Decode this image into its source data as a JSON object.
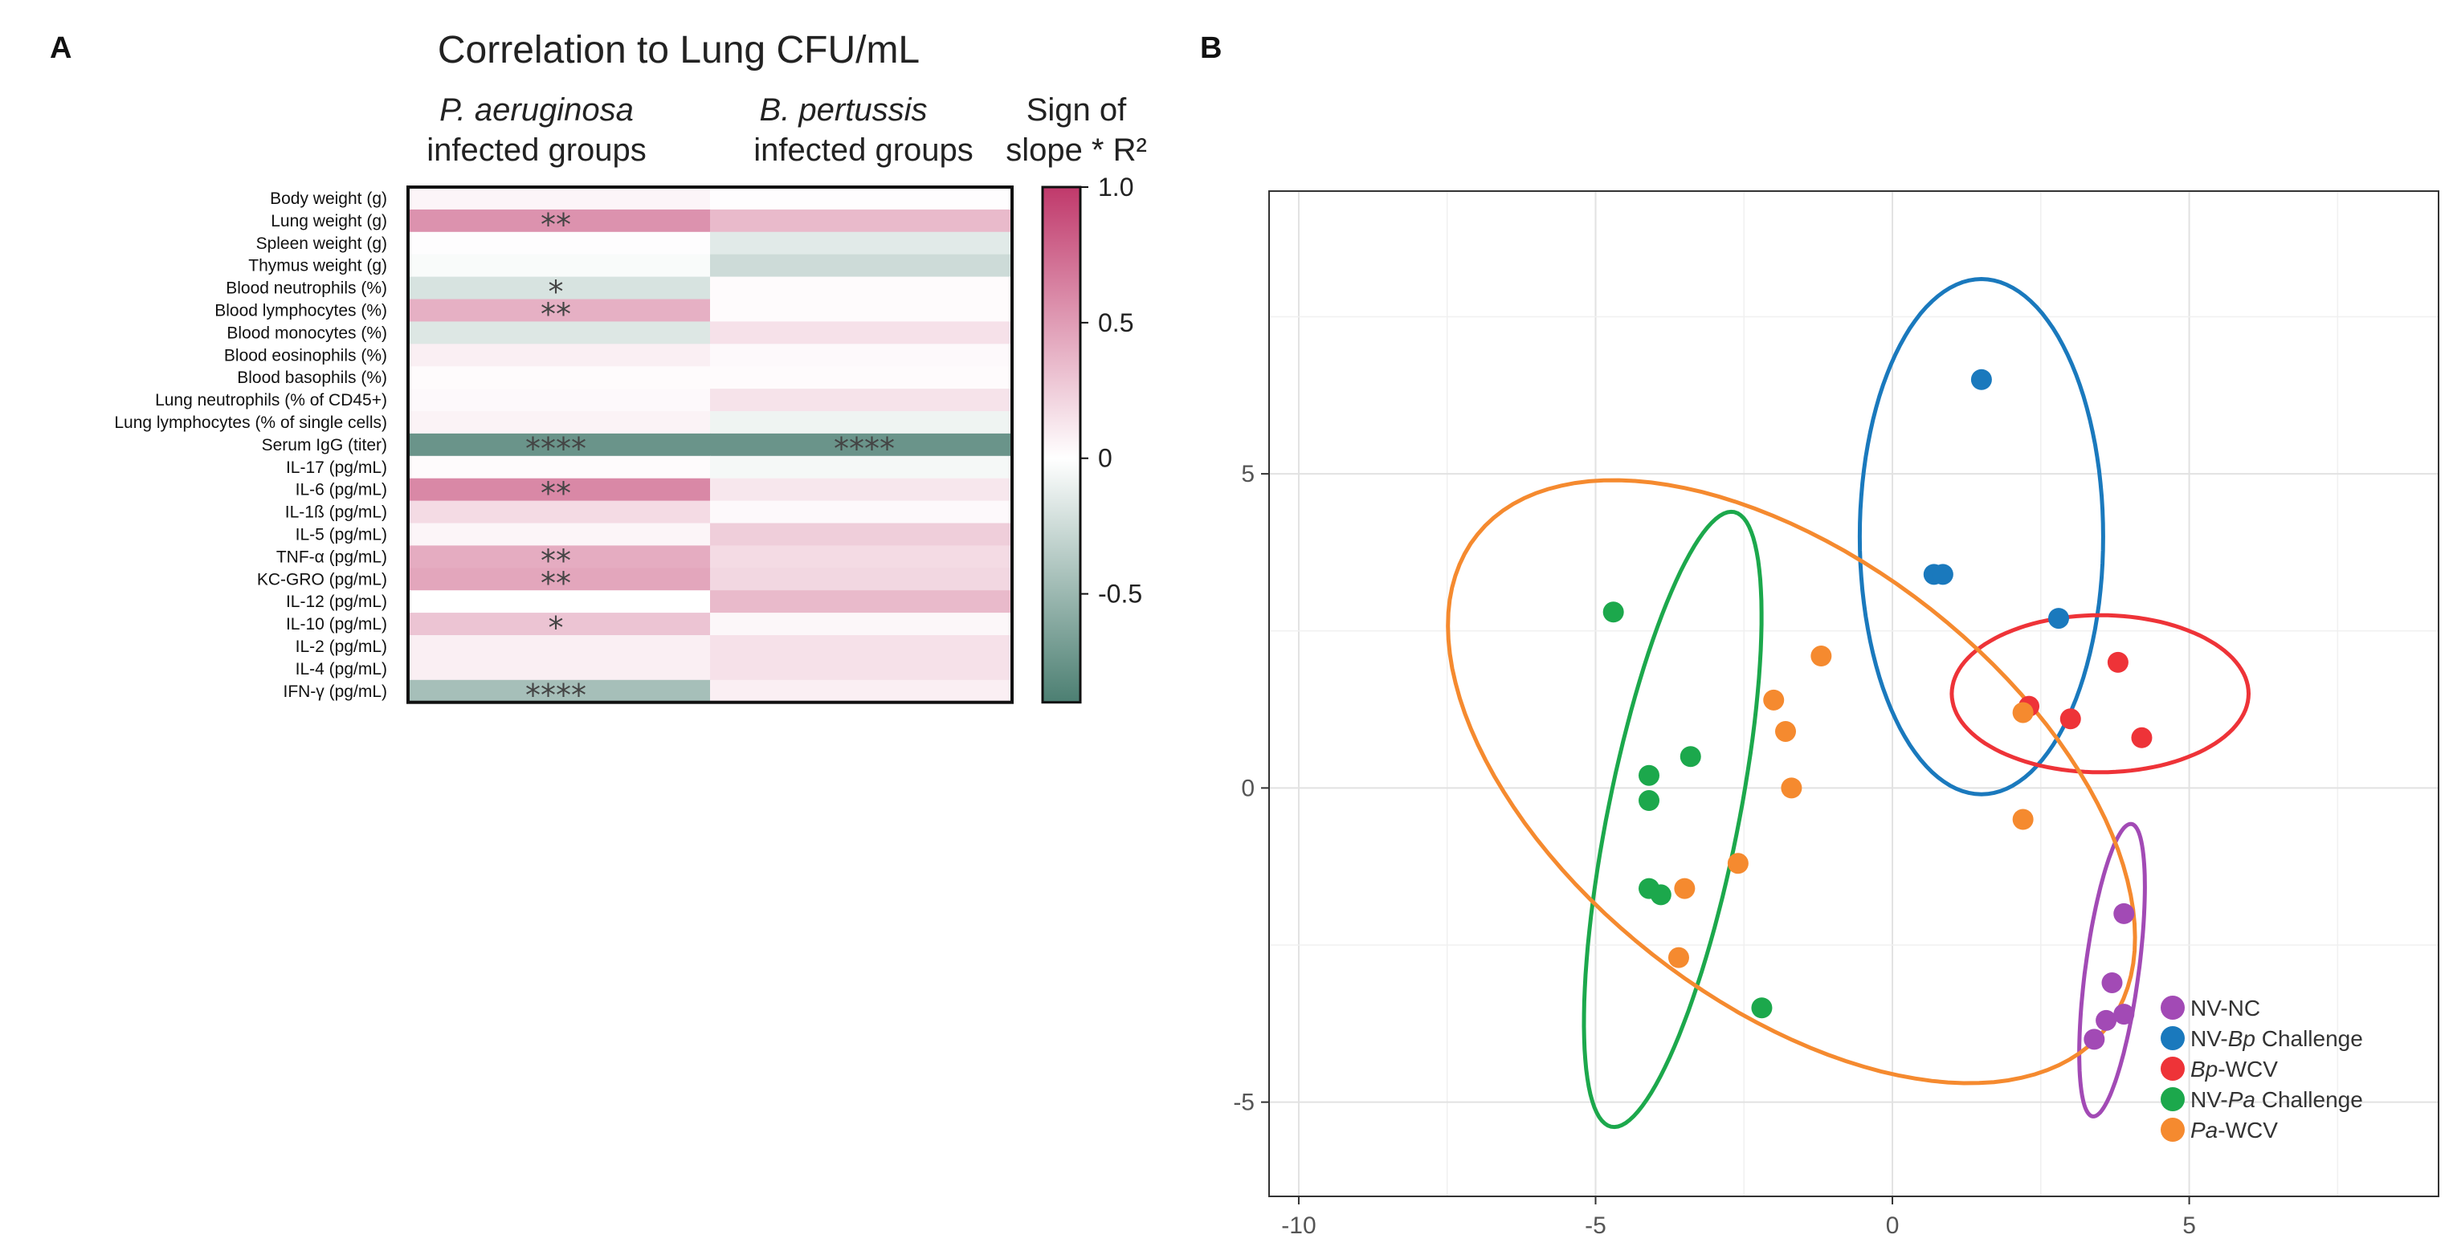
{
  "panel_a_letter": "A",
  "panel_b_letter": "B",
  "chart_data": [
    {
      "type": "heatmap",
      "title": "Correlation to Lung CFU/mL",
      "columns": [
        {
          "italic": "P. aeruginosa",
          "rest": "infected groups"
        },
        {
          "italic": "B. pertussis",
          "rest": "infected groups"
        }
      ],
      "colorbar": {
        "label_line1": "Sign of",
        "label_line2": "slope * R²",
        "range": [
          -0.9,
          1.0
        ],
        "ticks": [
          "1.0",
          "0.5",
          "0",
          "-0.5"
        ],
        "tick_values": [
          1.0,
          0.5,
          0.0,
          -0.5
        ]
      },
      "colors": {
        "high": "#c0396b",
        "mid": "#ffffff",
        "low": "#4c7f72"
      },
      "rows": [
        {
          "label": "Body weight (g)",
          "values": [
            0.05,
            0.01
          ],
          "stars": [
            "",
            ""
          ]
        },
        {
          "label": "Lung weight (g)",
          "values": [
            0.55,
            0.35
          ],
          "stars": [
            "**",
            ""
          ]
        },
        {
          "label": "Spleen weight (g)",
          "values": [
            0.01,
            -0.15
          ],
          "stars": [
            "",
            ""
          ]
        },
        {
          "label": "Thymus weight (g)",
          "values": [
            -0.03,
            -0.25
          ],
          "stars": [
            "",
            ""
          ]
        },
        {
          "label": "Blood neutrophils (%)",
          "values": [
            -0.2,
            0.02
          ],
          "stars": [
            "*",
            ""
          ]
        },
        {
          "label": "Blood lymphocytes (%)",
          "values": [
            0.4,
            0.02
          ],
          "stars": [
            "**",
            ""
          ]
        },
        {
          "label": "Blood monocytes (%)",
          "values": [
            -0.17,
            0.15
          ],
          "stars": [
            "",
            ""
          ]
        },
        {
          "label": "Blood eosinophils (%)",
          "values": [
            0.08,
            0.03
          ],
          "stars": [
            "",
            ""
          ]
        },
        {
          "label": "Blood basophils (%)",
          "values": [
            0.02,
            0.02
          ],
          "stars": [
            "",
            ""
          ]
        },
        {
          "label": "Lung neutrophils (% of CD45+)",
          "values": [
            0.03,
            0.14
          ],
          "stars": [
            "",
            ""
          ]
        },
        {
          "label": "Lung lymphocytes (% of single cells)",
          "values": [
            0.06,
            -0.08
          ],
          "stars": [
            "",
            ""
          ]
        },
        {
          "label": "Serum IgG (titer)",
          "values": [
            -0.75,
            -0.75
          ],
          "stars": [
            "****",
            "****"
          ]
        },
        {
          "label": "IL-17 (pg/mL)",
          "values": [
            0.02,
            -0.05
          ],
          "stars": [
            "",
            ""
          ]
        },
        {
          "label": "IL-6 (pg/mL)",
          "values": [
            0.6,
            0.12
          ],
          "stars": [
            "**",
            ""
          ]
        },
        {
          "label": "IL-1ß (pg/mL)",
          "values": [
            0.18,
            0.03
          ],
          "stars": [
            "",
            ""
          ]
        },
        {
          "label": "IL-5 (pg/mL)",
          "values": [
            0.05,
            0.25
          ],
          "stars": [
            "",
            ""
          ]
        },
        {
          "label": "TNF-α (pg/mL)",
          "values": [
            0.42,
            0.18
          ],
          "stars": [
            "**",
            ""
          ]
        },
        {
          "label": "KC-GRO (pg/mL)",
          "values": [
            0.45,
            0.2
          ],
          "stars": [
            "**",
            ""
          ]
        },
        {
          "label": "IL-12 (pg/mL)",
          "values": [
            0.0,
            0.35
          ],
          "stars": [
            "",
            ""
          ]
        },
        {
          "label": "IL-10 (pg/mL)",
          "values": [
            0.3,
            0.04
          ],
          "stars": [
            "*",
            ""
          ]
        },
        {
          "label": "IL-2 (pg/mL)",
          "values": [
            0.08,
            0.15
          ],
          "stars": [
            "",
            ""
          ]
        },
        {
          "label": "IL-4 (pg/mL)",
          "values": [
            0.08,
            0.15
          ],
          "stars": [
            "",
            ""
          ]
        },
        {
          "label": "IFN-γ (pg/mL)",
          "values": [
            -0.45,
            0.08
          ],
          "stars": [
            "****",
            ""
          ]
        }
      ]
    },
    {
      "type": "scatter",
      "xlim": [
        -10.5,
        9.2
      ],
      "ylim": [
        -6.5,
        9.5
      ],
      "x_ticks": [
        -10,
        -5,
        0,
        5
      ],
      "x_tick_labels": [
        "-10",
        "-5",
        "0",
        "5"
      ],
      "y_ticks": [
        5,
        0,
        -5
      ],
      "y_tick_labels": [
        "5",
        "0",
        "-5"
      ],
      "grid": true,
      "legend_position": "bottom-right",
      "series": [
        {
          "name_pre": "NV-NC",
          "name_italic": "",
          "name_post": "",
          "color": "#a24ab5",
          "points": [
            [
              3.9,
              -2.0
            ],
            [
              3.7,
              -3.1
            ],
            [
              3.9,
              -3.6
            ],
            [
              3.6,
              -3.7
            ],
            [
              3.4,
              -4.0
            ]
          ],
          "ellipse": {
            "cx": 3.7,
            "cy": -2.9,
            "rx": 2.35,
            "ry": 0.45,
            "angle_deg": 82
          }
        },
        {
          "name_pre": "NV-",
          "name_italic": "Bp",
          "name_post": " Challenge",
          "color": "#1a79bd",
          "points": [
            [
              1.5,
              6.5
            ],
            [
              0.7,
              3.4
            ],
            [
              0.85,
              3.4
            ],
            [
              2.8,
              2.7
            ]
          ],
          "ellipse": {
            "cx": 1.5,
            "cy": 4.0,
            "rx": 4.1,
            "ry": 2.05,
            "angle_deg": 90
          }
        },
        {
          "name_pre": "",
          "name_italic": "Bp",
          "name_post": "-WCV",
          "color": "#ee3338",
          "points": [
            [
              3.8,
              2.0
            ],
            [
              2.3,
              1.3
            ],
            [
              3.0,
              1.1
            ],
            [
              4.2,
              0.8
            ]
          ],
          "ellipse": {
            "cx": 3.5,
            "cy": 1.5,
            "rx": 2.5,
            "ry": 1.25,
            "angle_deg": 0
          }
        },
        {
          "name_pre": "NV-",
          "name_italic": "Pa",
          "name_post": " Challenge",
          "color": "#1ca84c",
          "points": [
            [
              -4.7,
              2.8
            ],
            [
              -4.1,
              0.2
            ],
            [
              -4.1,
              -0.2
            ],
            [
              -3.4,
              0.5
            ],
            [
              -4.1,
              -1.6
            ],
            [
              -3.9,
              -1.7
            ],
            [
              -2.2,
              -3.5
            ]
          ],
          "ellipse": {
            "cx": -3.7,
            "cy": -0.5,
            "rx": 5.0,
            "ry": 1.1,
            "angle_deg": 78
          }
        },
        {
          "name_pre": "",
          "name_italic": "Pa",
          "name_post": "-WCV",
          "color": "#f58a2f",
          "points": [
            [
              -1.2,
              2.1
            ],
            [
              -2.0,
              1.4
            ],
            [
              -1.8,
              0.9
            ],
            [
              -1.7,
              0.0
            ],
            [
              -2.6,
              -1.2
            ],
            [
              -3.5,
              -1.6
            ],
            [
              -3.6,
              -2.7
            ],
            [
              2.2,
              -0.5
            ],
            [
              2.2,
              1.2
            ]
          ],
          "ellipse": {
            "cx": -1.7,
            "cy": 0.1,
            "rx": 6.6,
            "ry": 3.6,
            "angle_deg": -35
          }
        }
      ]
    }
  ]
}
